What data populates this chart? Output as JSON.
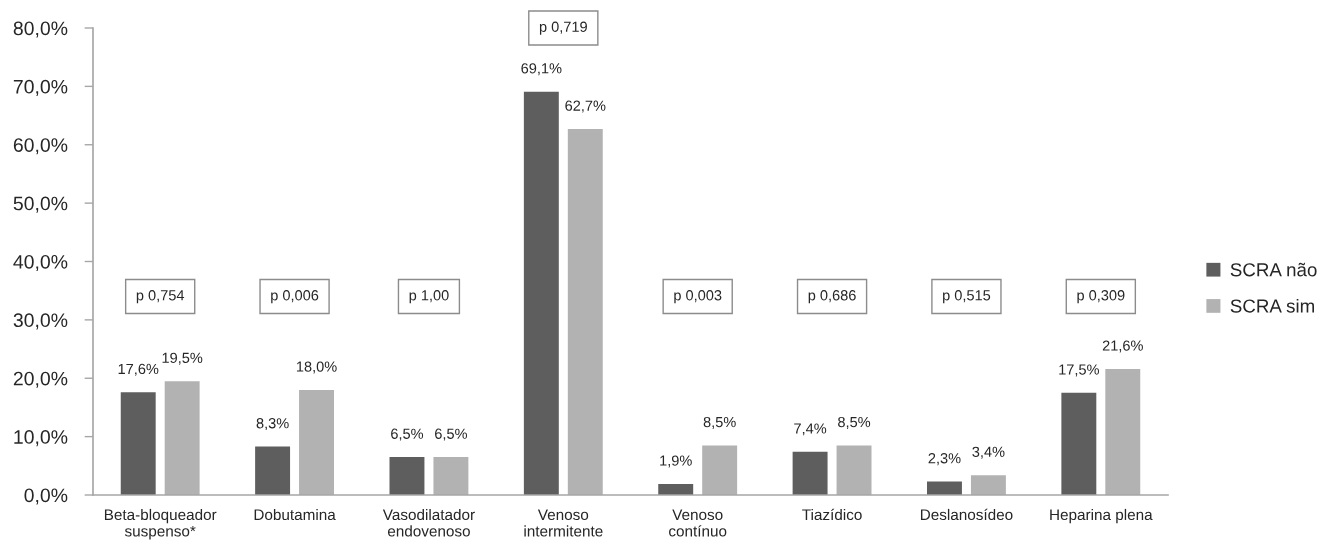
{
  "chart_data": {
    "type": "bar",
    "categories": [
      "Beta-bloqueador\nsuspenso*",
      "Dobutamina",
      "Vasodilatador\nendovenoso",
      "Venoso\nintermitente",
      "Venoso\ncontínuo",
      "Tiazídico",
      "Deslanosídeo",
      "Heparina plena"
    ],
    "series": [
      {
        "name": "SCRA não",
        "color": "#5e5e5e",
        "values": [
          17.6,
          8.3,
          6.5,
          69.1,
          1.9,
          7.4,
          2.3,
          17.5
        ],
        "value_labels": [
          "17,6%",
          "8,3%",
          "6,5%",
          "69,1%",
          "1,9%",
          "7,4%",
          "2,3%",
          "17,5%"
        ]
      },
      {
        "name": "SCRA sim",
        "color": "#b2b2b2",
        "values": [
          19.5,
          18.0,
          6.5,
          62.7,
          8.5,
          8.5,
          3.4,
          21.6
        ],
        "value_labels": [
          "19,5%",
          "18,0%",
          "6,5%",
          "62,7%",
          "8,5%",
          "8,5%",
          "3,4%",
          "21,6%"
        ]
      }
    ],
    "ylim": [
      0,
      80
    ],
    "yticks": [
      {
        "value": 0,
        "label": "0,0%"
      },
      {
        "value": 10,
        "label": "10,0%"
      },
      {
        "value": 20,
        "label": "20,0%"
      },
      {
        "value": 30,
        "label": "30,0%"
      },
      {
        "value": 40,
        "label": "40,0%"
      },
      {
        "value": 50,
        "label": "50,0%"
      },
      {
        "value": 60,
        "label": "60,0%"
      },
      {
        "value": 70,
        "label": "70,0%"
      },
      {
        "value": 80,
        "label": "80,0%"
      }
    ],
    "grid": false,
    "legend": "right",
    "annotations": [
      "p 0,754",
      "p 0,006",
      "p 1,00",
      "p 0,719",
      "p 0,003",
      "p 0,686",
      "p 0,515",
      "p 0,309"
    ]
  }
}
